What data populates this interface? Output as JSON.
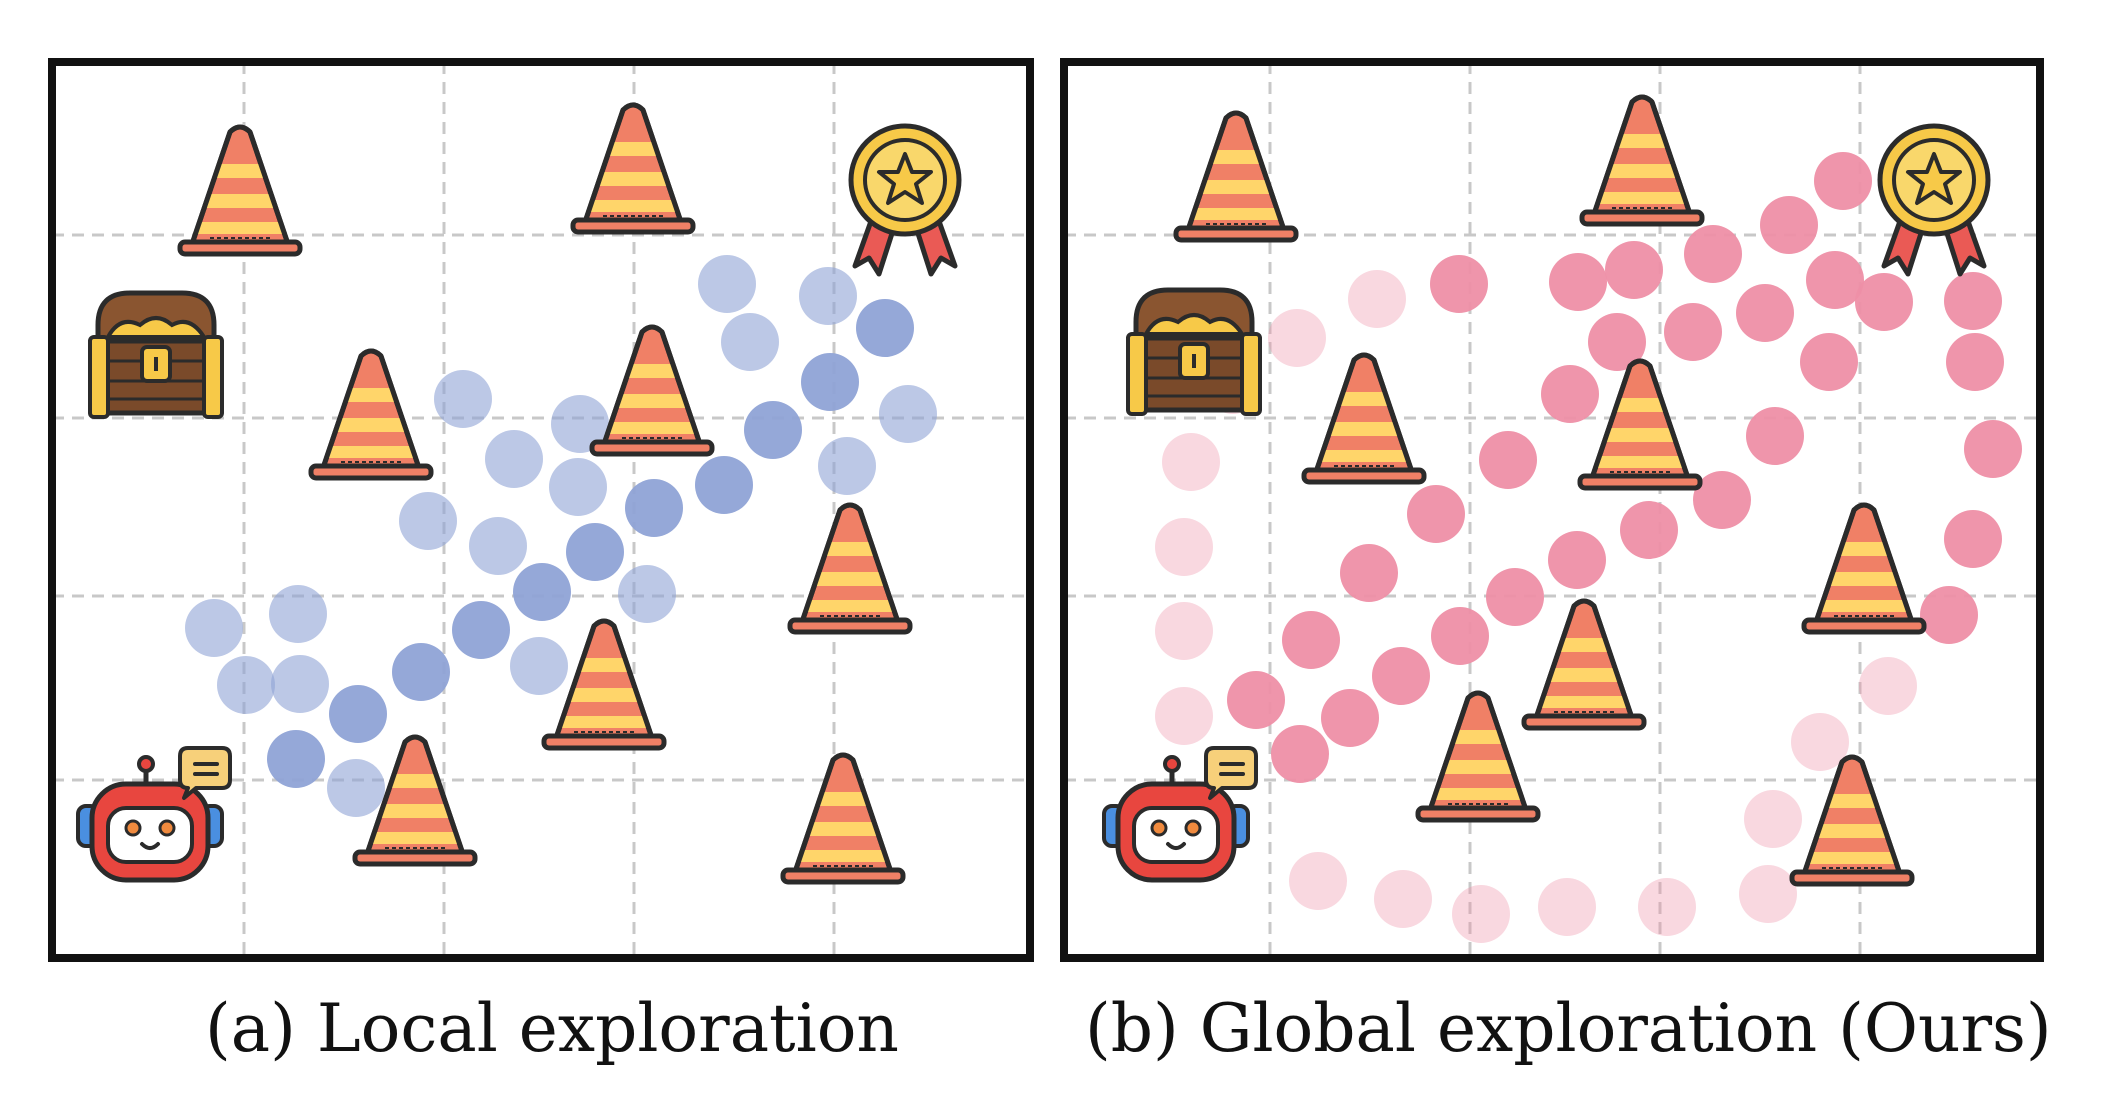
{
  "panels": [
    {
      "id": "a",
      "caption": "(a) Local exploration",
      "dot_color": "#8fa3d6",
      "grid_columns": 5,
      "grid_rows": 5
    },
    {
      "id": "b",
      "caption": "(b) Global exploration (Ours)",
      "dot_color": "#ee8fa6",
      "grid_columns": 5,
      "grid_rows": 5
    }
  ],
  "icons": [
    "traffic-cone-icon",
    "treasure-chest-icon",
    "award-medal-icon",
    "robot-icon",
    "speech-bubble-icon"
  ],
  "colors": {
    "frame": "#111111",
    "grid": "#c8c8c8",
    "cone_orange": "#f08066",
    "cone_stripe": "#ffd56a",
    "robot_red": "#e8463f",
    "medal_gold": "#f7c948",
    "ribbon_red": "#ea5a55",
    "chest_brown": "#7a4a2a"
  }
}
